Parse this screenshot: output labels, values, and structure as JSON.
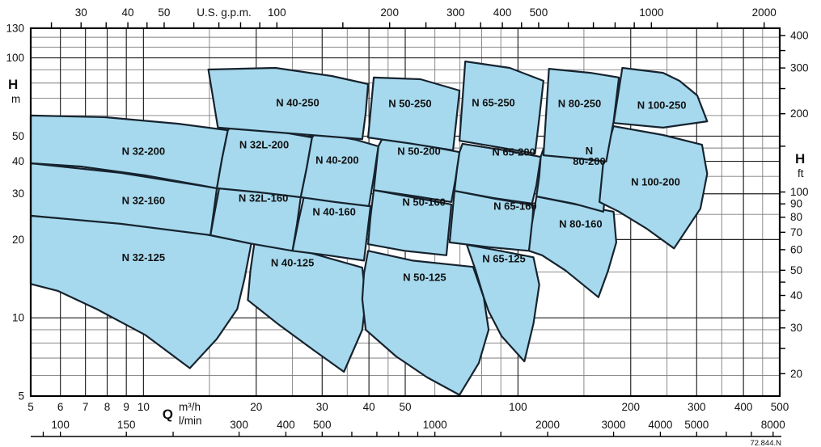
{
  "meta": {
    "doc_number": "72.844.N"
  },
  "style": {
    "region_fill": "#a6d9ee",
    "region_stroke": "#16232e",
    "label_color": "#121e28",
    "grid_minor": "#7d7d7d",
    "grid_major": "#1f1f1f",
    "axis_color": "#000000"
  },
  "axes": {
    "h": {
      "label": "H",
      "unit": "m",
      "labeled": [
        130,
        100,
        50,
        40,
        30,
        20,
        10,
        5
      ],
      "grid_minor": [
        6,
        7,
        8,
        9,
        15,
        25,
        35,
        45,
        60,
        70,
        80,
        90,
        110,
        120
      ],
      "grid_major": [
        10,
        20,
        30,
        40,
        50,
        100
      ],
      "range": [
        5,
        130
      ]
    },
    "q": {
      "symbol": "Q",
      "unit_top": "m³/h",
      "unit_bottom": "l/min",
      "labeled": [
        5,
        6,
        7,
        8,
        9,
        10,
        20,
        30,
        40,
        50,
        100,
        200,
        300,
        400,
        500
      ],
      "grid_minor": [
        15,
        25,
        35,
        45,
        60,
        70,
        80,
        90,
        150,
        250,
        350,
        450
      ],
      "grid_major": [
        6,
        7,
        8,
        9,
        10,
        20,
        30,
        40,
        50,
        100,
        200,
        300,
        400
      ],
      "range": [
        5,
        500
      ]
    },
    "gpm": {
      "title": "U.S. g.p.m.",
      "labeled": [
        30,
        40,
        50,
        100,
        200,
        300,
        400,
        500,
        1000,
        2000
      ],
      "ticks": [
        25,
        30,
        35,
        40,
        45,
        50,
        60,
        70,
        80,
        90,
        100,
        150,
        200,
        250,
        300,
        350,
        400,
        450,
        500,
        600,
        700,
        800,
        900,
        1000,
        1500,
        2000
      ],
      "to_m3h": 0.22712
    },
    "h_ft": {
      "label": "H",
      "unit": "ft",
      "labeled": [
        400,
        300,
        200,
        100,
        90,
        80,
        70,
        60,
        50,
        40,
        30,
        20
      ],
      "ticks": [
        20,
        25,
        30,
        35,
        40,
        45,
        50,
        60,
        70,
        80,
        90,
        100,
        150,
        200,
        250,
        300,
        350,
        400
      ],
      "to_m": 0.3048
    },
    "lmin": {
      "labeled": [
        100,
        150,
        300,
        400,
        500,
        1000,
        2000,
        3000,
        4000,
        5000,
        8000
      ],
      "ticks": [
        90,
        100,
        150,
        200,
        300,
        400,
        500,
        600,
        700,
        800,
        900,
        1000,
        1500,
        2000,
        3000,
        4000,
        5000,
        6000,
        7000,
        8000
      ],
      "to_m3h": 0.06
    }
  },
  "chart_data": {
    "type": "area",
    "description": "Pump selection range chart: operating envelopes (Q vs H) on log-log axes",
    "q_unit": "m³/h",
    "h_unit": "m",
    "q_range": [
      5,
      500
    ],
    "h_range": [
      5,
      130
    ],
    "series": [
      {
        "name": "N 32-125",
        "label_lines": [
          "N 32-125"
        ],
        "label_at": [
          10,
          17.1
        ],
        "points": [
          [
            5,
            24.7
          ],
          [
            8.7,
            23.1
          ],
          [
            14.3,
            21.1
          ],
          [
            19.4,
            19.3
          ],
          [
            18.6,
            14.1
          ],
          [
            17.8,
            10.8
          ],
          [
            15.7,
            8.3
          ],
          [
            13.3,
            6.4
          ],
          [
            10.1,
            8.6
          ],
          [
            7.5,
            10.8
          ],
          [
            5.9,
            12.7
          ],
          [
            5,
            13.5
          ]
        ]
      },
      {
        "name": "N 40-125",
        "label_lines": [
          "N 40-125"
        ],
        "label_at": [
          25,
          16.3
        ],
        "points": [
          [
            19.8,
            19.6
          ],
          [
            27.4,
            17.9
          ],
          [
            38.4,
            15.6
          ],
          [
            39.2,
            11.8
          ],
          [
            38.4,
            9
          ],
          [
            34.3,
            6.2
          ],
          [
            28.5,
            7.5
          ],
          [
            23,
            9.4
          ],
          [
            19,
            11.7
          ],
          [
            19.3,
            15.2
          ]
        ]
      },
      {
        "name": "N 50-125",
        "label_lines": [
          "N 50-125"
        ],
        "label_at": [
          56.3,
          14.3
        ],
        "points": [
          [
            39.8,
            18.1
          ],
          [
            52.3,
            16.6
          ],
          [
            75.9,
            15.7
          ],
          [
            81,
            12
          ],
          [
            83.5,
            9
          ],
          [
            78.6,
            6.7
          ],
          [
            69.8,
            5.05
          ],
          [
            57.2,
            5.9
          ],
          [
            47.3,
            7.1
          ],
          [
            39.2,
            9
          ],
          [
            38.4,
            11.8
          ],
          [
            38.8,
            14.8
          ]
        ]
      },
      {
        "name": "N 65-125",
        "label_lines": [
          "N 65-125"
        ],
        "label_at": [
          91.7,
          16.9
        ],
        "points": [
          [
            73,
            19.1
          ],
          [
            89.5,
            18.1
          ],
          [
            110,
            17.1
          ],
          [
            114,
            13.4
          ],
          [
            110,
            9.5
          ],
          [
            104,
            6.8
          ],
          [
            90.4,
            8.5
          ],
          [
            83.5,
            10.6
          ],
          [
            81,
            12
          ],
          [
            77.1,
            15.2
          ]
        ]
      },
      {
        "name": "N 32-160",
        "label_lines": [
          "N 32-160"
        ],
        "label_at": [
          10,
          28.3
        ],
        "points": [
          [
            5,
            39.3
          ],
          [
            8.7,
            36.1
          ],
          [
            15.7,
            31.5
          ],
          [
            15.4,
            25.6
          ],
          [
            15.1,
            20.8
          ],
          [
            8.7,
            23
          ],
          [
            5,
            24.7
          ]
        ]
      },
      {
        "name": "N 32L-160",
        "label_lines": [
          "N 32L-160"
        ],
        "label_at": [
          20.9,
          28.9
        ],
        "points": [
          [
            16,
            32.6
          ],
          [
            20.3,
            30.8
          ],
          [
            26.3,
            29.1
          ],
          [
            25.7,
            23
          ],
          [
            25,
            18.1
          ],
          [
            19.4,
            19.3
          ],
          [
            15.1,
            20.8
          ],
          [
            15.5,
            25.6
          ]
        ]
      },
      {
        "name": "N 40-160",
        "label_lines": [
          "N 40-160"
        ],
        "label_at": [
          32.3,
          25.6
        ],
        "points": [
          [
            26.9,
            29.9
          ],
          [
            33.4,
            28.3
          ],
          [
            40.4,
            26.9
          ],
          [
            39.6,
            21.2
          ],
          [
            38.8,
            16.6
          ],
          [
            31,
            17.4
          ],
          [
            25,
            18.1
          ],
          [
            25.9,
            23.3
          ]
        ]
      },
      {
        "name": "N 50-160",
        "label_lines": [
          "N 50-160"
        ],
        "label_at": [
          56.1,
          27.9
        ],
        "points": [
          [
            41.2,
            31
          ],
          [
            53.6,
            28.9
          ],
          [
            66.4,
            27.3
          ],
          [
            65.4,
            21.9
          ],
          [
            64.4,
            17.4
          ],
          [
            49.8,
            18.1
          ],
          [
            39.8,
            19.2
          ],
          [
            40.4,
            24.5
          ]
        ]
      },
      {
        "name": "N 65-160",
        "label_lines": [
          "N 65-160"
        ],
        "label_at": [
          98.3,
          26.9
        ],
        "points": [
          [
            67.7,
            30.8
          ],
          [
            86.9,
            28.7
          ],
          [
            110,
            27.1
          ],
          [
            109,
            22.2
          ],
          [
            107,
            18.1
          ],
          [
            83.9,
            18.7
          ],
          [
            65.7,
            19.5
          ],
          [
            66.7,
            24.5
          ]
        ]
      },
      {
        "name": "N 80-160",
        "label_lines": [
          "N 80-160"
        ],
        "label_at": [
          147,
          23
        ],
        "points": [
          [
            112,
            29.3
          ],
          [
            143,
            27.3
          ],
          [
            180,
            25.6
          ],
          [
            183,
            19.5
          ],
          [
            174,
            15.2
          ],
          [
            164,
            12
          ],
          [
            134,
            15.2
          ],
          [
            116,
            17.4
          ],
          [
            107,
            18.1
          ],
          [
            109,
            23.1
          ]
        ]
      },
      {
        "name": "N 32-200",
        "label_lines": [
          "N 32-200"
        ],
        "label_at": [
          10,
          43.8
        ],
        "points": [
          [
            5,
            60
          ],
          [
            7.9,
            59.1
          ],
          [
            12.4,
            55.8
          ],
          [
            16.8,
            52.7
          ],
          [
            16.2,
            40.8
          ],
          [
            15.7,
            31.5
          ],
          [
            10.1,
            35.3
          ],
          [
            6.8,
            38.2
          ],
          [
            5,
            39.3
          ]
        ]
      },
      {
        "name": "N 32L-200",
        "label_lines": [
          "N 32L-200"
        ],
        "label_at": [
          21,
          46.3
        ],
        "points": [
          [
            16.8,
            52.7
          ],
          [
            17.2,
            54.6
          ],
          [
            22.5,
            52.3
          ],
          [
            28.2,
            49.4
          ],
          [
            27.3,
            37.9
          ],
          [
            26.3,
            29.1
          ],
          [
            20.3,
            30.4
          ],
          [
            15.7,
            31.5
          ],
          [
            16.2,
            40.8
          ]
        ]
      },
      {
        "name": "N 40-200",
        "label_lines": [
          "N 40-200"
        ],
        "label_at": [
          32.9,
          40.5
        ],
        "points": [
          [
            28.2,
            49.4
          ],
          [
            28.9,
            51.6
          ],
          [
            36.9,
            48.4
          ],
          [
            42.4,
            45.7
          ],
          [
            41.2,
            34.8
          ],
          [
            40,
            26.9
          ],
          [
            32.4,
            27.9
          ],
          [
            26.3,
            29.1
          ],
          [
            27.3,
            37.9
          ]
        ]
      },
      {
        "name": "N 50-200",
        "label_lines": [
          "N 50-200"
        ],
        "label_at": [
          54.4,
          43.8
        ],
        "points": [
          [
            42.4,
            45.7
          ],
          [
            43.5,
            49.1
          ],
          [
            56.3,
            46
          ],
          [
            69.8,
            43.4
          ],
          [
            68.1,
            34.1
          ],
          [
            66.4,
            27.9
          ],
          [
            53.6,
            29.3
          ],
          [
            41.2,
            31
          ],
          [
            41.8,
            37.7
          ]
        ]
      },
      {
        "name": "N 65-200",
        "label_lines": [
          "N 65-200"
        ],
        "label_at": [
          97.4,
          43.4
        ],
        "points": [
          [
            69.8,
            43.4
          ],
          [
            71.1,
            46.7
          ],
          [
            95,
            43.8
          ],
          [
            115,
            41.6
          ],
          [
            112,
            32.4
          ],
          [
            109,
            27.5
          ],
          [
            86,
            28.9
          ],
          [
            67.7,
            30.8
          ],
          [
            68.7,
            37.1
          ]
        ]
      },
      {
        "name": "N 80-200",
        "label_lines": [
          "N",
          "80-200"
        ],
        "label_at": [
          155,
          42.5
        ],
        "points": [
          [
            115,
            41.6
          ],
          [
            117,
            44.7
          ],
          [
            149,
            41.6
          ],
          [
            177,
            39.6
          ],
          [
            172,
            32.2
          ],
          [
            169,
            25.6
          ],
          [
            141,
            27.5
          ],
          [
            112,
            29.3
          ],
          [
            114,
            35.1
          ]
        ]
      },
      {
        "name": "N 100-200",
        "label_lines": [
          "N 100-200"
        ],
        "label_at": [
          233,
          33.3
        ],
        "points": [
          [
            180,
            54.6
          ],
          [
            244,
            50.5
          ],
          [
            310,
            46.3
          ],
          [
            320,
            35.8
          ],
          [
            307,
            26.3
          ],
          [
            261,
            18.5
          ],
          [
            221,
            22
          ],
          [
            186,
            25.6
          ],
          [
            165,
            27.9
          ],
          [
            169,
            39.9
          ]
        ]
      },
      {
        "name": "N 40-250",
        "label_lines": [
          "N 40-250"
        ],
        "label_at": [
          25.8,
          67.3
        ],
        "points": [
          [
            14.9,
            90.2
          ],
          [
            22.5,
            91.5
          ],
          [
            31.8,
            85.2
          ],
          [
            39.8,
            79.3
          ],
          [
            39.2,
            61.3
          ],
          [
            38.4,
            48.7
          ],
          [
            24.8,
            51.2
          ],
          [
            15.8,
            53.9
          ]
        ]
      },
      {
        "name": "N 50-250",
        "label_lines": [
          "N 50-250"
        ],
        "label_at": [
          51.5,
          66.8
        ],
        "points": [
          [
            41.2,
            84
          ],
          [
            54.9,
            82.8
          ],
          [
            69.8,
            74.9
          ],
          [
            68.4,
            57
          ],
          [
            67.1,
            44.1
          ],
          [
            52.3,
            46.7
          ],
          [
            39.8,
            49.4
          ]
        ]
      },
      {
        "name": "N 65-250",
        "label_lines": [
          "N 65-250"
        ],
        "label_at": [
          86,
          67.3
        ],
        "points": [
          [
            72.3,
            96.9
          ],
          [
            95,
            91.5
          ],
          [
            117,
            81.6
          ],
          [
            114,
            58.7
          ],
          [
            111,
            42.8
          ],
          [
            88.2,
            45.4
          ],
          [
            69.8,
            48
          ]
        ]
      },
      {
        "name": "N 80-250",
        "label_lines": [
          "N 80-250"
        ],
        "label_at": [
          146,
          66.8
        ],
        "points": [
          [
            121,
            90.8
          ],
          [
            156,
            87.6
          ],
          [
            186,
            84
          ],
          [
            180,
            57
          ],
          [
            172,
            39.9
          ],
          [
            145,
            41
          ],
          [
            117,
            42.2
          ]
        ]
      },
      {
        "name": "N 100-250",
        "label_lines": [
          "N 100-250"
        ],
        "label_at": [
          242,
          65.8
        ],
        "points": [
          [
            190,
            91.5
          ],
          [
            244,
            87.6
          ],
          [
            270,
            81.6
          ],
          [
            301,
            71.7
          ],
          [
            320,
            57
          ],
          [
            244,
            53.9
          ],
          [
            180,
            56.2
          ]
        ]
      }
    ]
  }
}
